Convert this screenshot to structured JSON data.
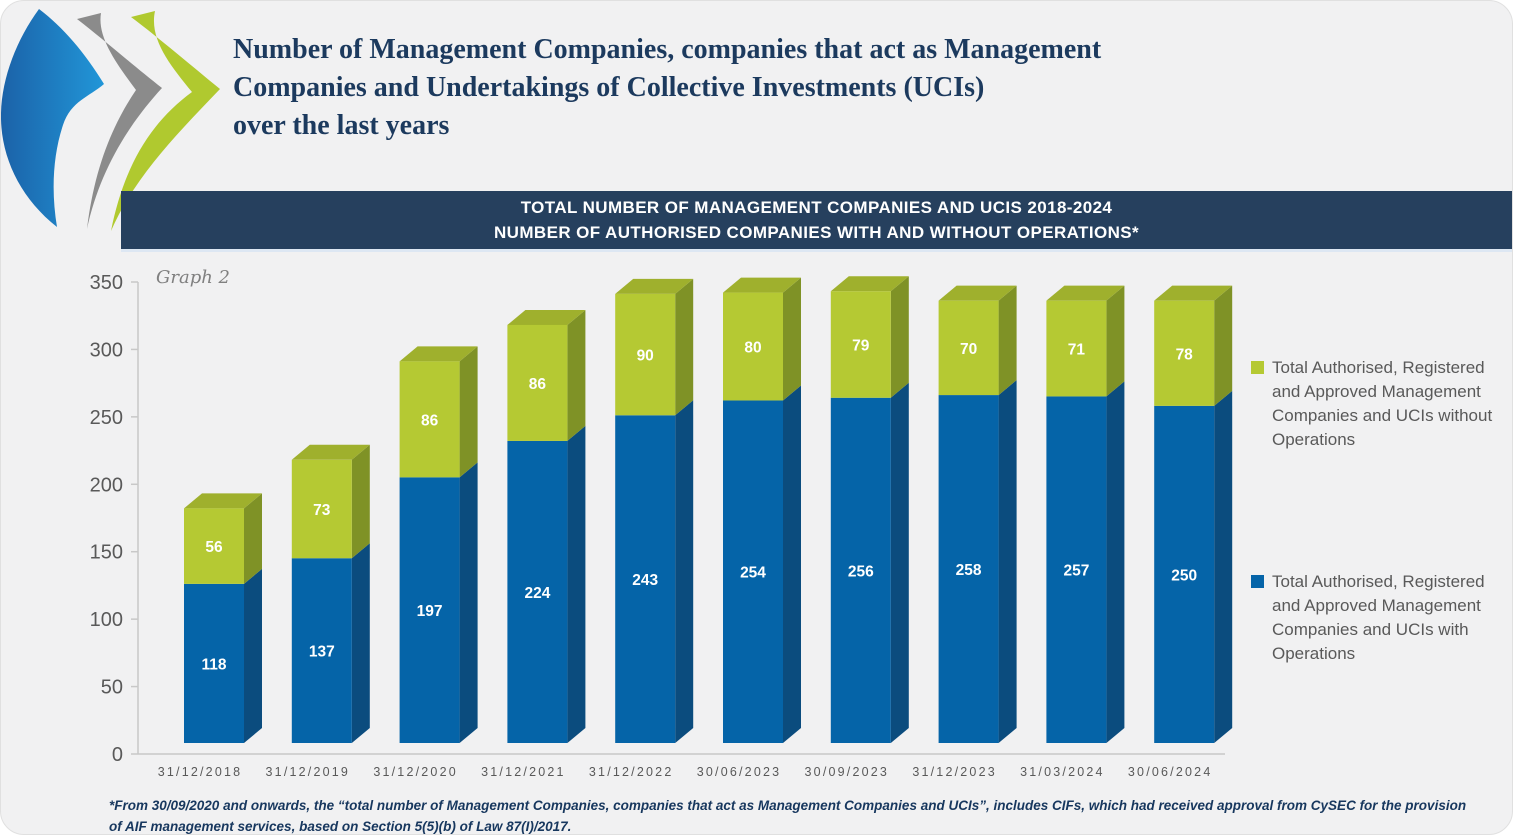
{
  "page": {
    "title": "Number of Management Companies, companies that act as Management\nCompanies and Undertakings of Collective Investments (UCIs)\nover the last years",
    "banner_line1": "TOTAL NUMBER OF MANAGEMENT COMPANIES AND UCIS 2018-2024",
    "banner_line2": "NUMBER OF AUTHORISED COMPANIES WITH AND WITHOUT OPERATIONS*",
    "graph_label": "Graph 2",
    "footnote": "*From 30/09/2020 and onwards, the “total number of Management Companies, companies that act as Management Companies and UCIs”, includes CIFs, which had received approval from CySEC for the provision\nof AIF management services, based on Section 5(5)(b) of Law 87(I)/2017."
  },
  "legend": {
    "without_operations": "Total Authorised, Registered and Approved Management Companies and UCIs without Operations",
    "with_operations": "Total Authorised, Registered and Approved Management Companies and UCIs with Operations"
  },
  "colors": {
    "blue_front": "#0564a8",
    "blue_side": "#0b4c7e",
    "green_front": "#b5c933",
    "green_side": "#7f9226",
    "green_top": "#9fb02d",
    "banner_bg": "#26405e",
    "banner_text": "#ffffff",
    "title_text": "#1c3a5e",
    "footnote_text": "#17375e",
    "legend_text": "#595959",
    "tick_text": "#595959",
    "axis_line": "#c8c8c8",
    "bar_value_text": "#ffffff",
    "logo_gray": "#8b8b8b",
    "logo_green": "#b0c92f",
    "logo_blue_dark": "#1b62a8",
    "logo_blue_light": "#2196d8"
  },
  "chart_data": {
    "type": "bar",
    "stacked": true,
    "effect": "3d",
    "title": "TOTAL NUMBER OF MANAGEMENT COMPANIES AND UCIS 2018-2024 — NUMBER OF AUTHORISED COMPANIES WITH AND WITHOUT OPERATIONS*",
    "categories": [
      "31/12/2018",
      "31/12/2019",
      "31/12/2020",
      "31/12/2021",
      "31/12/2022",
      "30/06/2023",
      "30/09/2023",
      "31/12/2023",
      "31/03/2024",
      "30/06/2024"
    ],
    "series": [
      {
        "name": "Total Authorised, Registered and Approved Management Companies and UCIs with Operations",
        "color": "#0564a8",
        "values": [
          118,
          137,
          197,
          224,
          243,
          254,
          256,
          258,
          257,
          250
        ]
      },
      {
        "name": "Total Authorised, Registered and Approved Management Companies and UCIs without Operations",
        "color": "#b5c933",
        "values": [
          56,
          73,
          86,
          86,
          90,
          80,
          79,
          70,
          71,
          78
        ]
      }
    ],
    "xlabel": "",
    "ylabel": "",
    "ylim": [
      0,
      350
    ],
    "ytick_step": 50,
    "grid": false,
    "legend_position": "right",
    "data_labels": "inside-center"
  }
}
